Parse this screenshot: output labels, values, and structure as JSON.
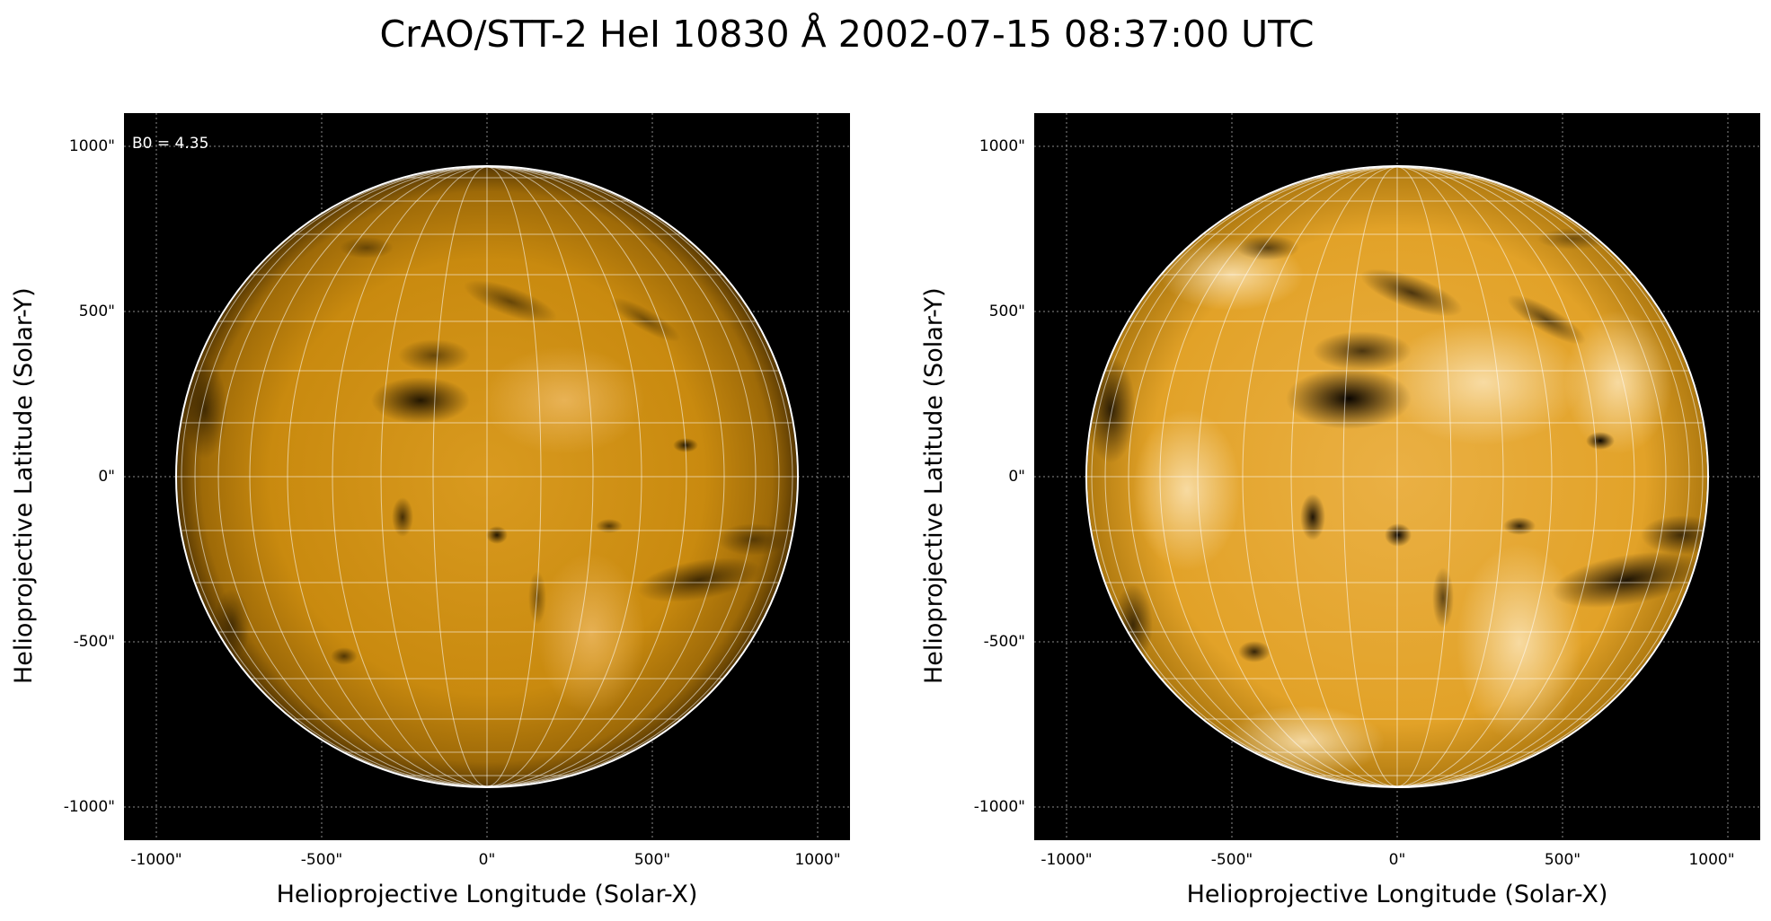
{
  "title": "CrAO/STT-2 HeI 10830 Å 2002-07-15 08:37:00 UTC",
  "panels": [
    {
      "xlabel": "Helioprojective Longitude (Solar-X)",
      "ylabel": "Helioprojective Latitude (Solar-Y)",
      "annotation": "B0 = 4.35",
      "xticks": [
        "-1000\"",
        "-500\"",
        "0\"",
        "500\"",
        "1000\""
      ],
      "yticks": [
        "1000\"",
        "500\"",
        "0\"",
        "-500\"",
        "-1000\""
      ]
    },
    {
      "xlabel": "Helioprojective Longitude (Solar-X)",
      "ylabel": "Helioprojective Latitude (Solar-Y)",
      "xticks": [
        "-1000\"",
        "-500\"",
        "0\"",
        "500\"",
        "1000\""
      ],
      "yticks": [
        "1000\"",
        "500\"",
        "0\"",
        "-500\"",
        "-1000\""
      ]
    }
  ],
  "colors": {
    "disk_left": "#c98a0c",
    "disk_right": "#e6a21a",
    "background": "#000000",
    "grid": "#ffffff"
  }
}
